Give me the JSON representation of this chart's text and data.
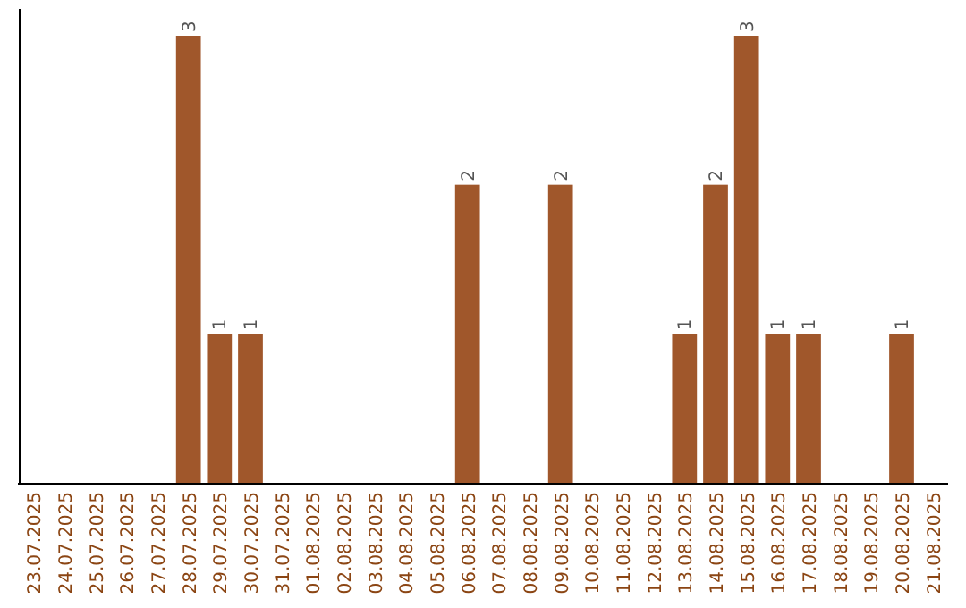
{
  "chart_data": {
    "type": "bar",
    "categories": [
      "23.07.2025",
      "24.07.2025",
      "25.07.2025",
      "26.07.2025",
      "27.07.2025",
      "28.07.2025",
      "29.07.2025",
      "30.07.2025",
      "31.07.2025",
      "01.08.2025",
      "02.08.2025",
      "03.08.2025",
      "04.08.2025",
      "05.08.2025",
      "06.08.2025",
      "07.08.2025",
      "08.08.2025",
      "09.08.2025",
      "10.08.2025",
      "11.08.2025",
      "12.08.2025",
      "13.08.2025",
      "14.08.2025",
      "15.08.2025",
      "16.08.2025",
      "17.08.2025",
      "18.08.2025",
      "19.08.2025",
      "20.08.2025",
      "21.08.2025"
    ],
    "values": [
      0,
      0,
      0,
      0,
      0,
      3,
      1,
      1,
      0,
      0,
      0,
      0,
      0,
      0,
      2,
      0,
      0,
      2,
      0,
      0,
      0,
      1,
      2,
      3,
      1,
      1,
      0,
      0,
      1,
      0
    ],
    "value_labels": [
      null,
      null,
      null,
      null,
      null,
      "3",
      "1",
      "1",
      null,
      null,
      null,
      null,
      null,
      null,
      "2",
      null,
      null,
      "2",
      null,
      null,
      null,
      "1",
      "2",
      "3",
      "1",
      "1",
      null,
      null,
      "1",
      null
    ],
    "color": "#a0572b",
    "tick_labels": "x"
  }
}
